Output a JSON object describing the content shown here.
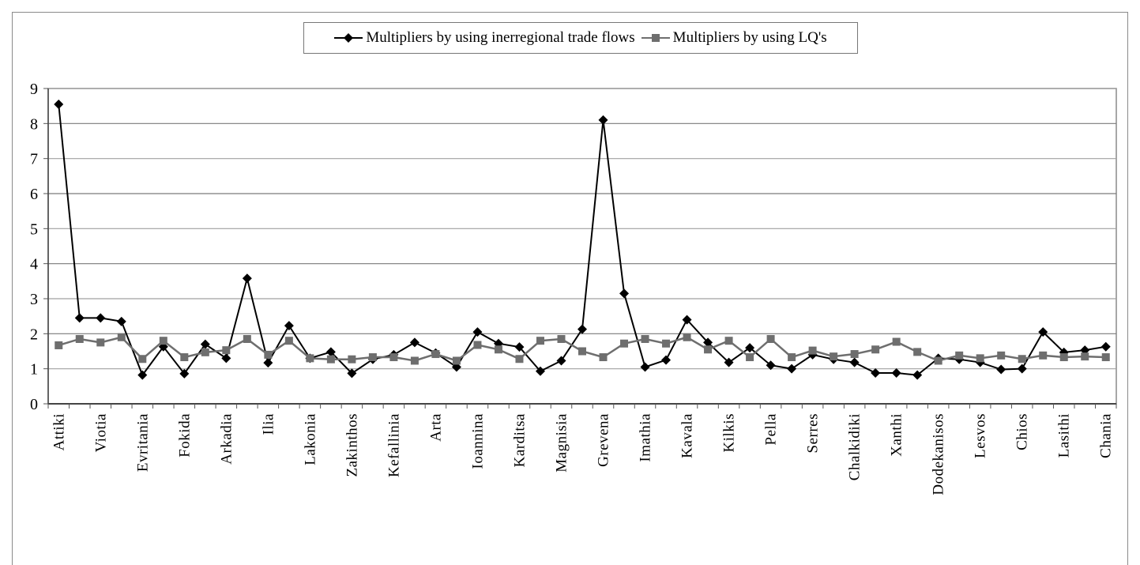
{
  "chart_data": {
    "type": "line",
    "title": "",
    "xlabel": "",
    "ylabel": "",
    "ylim": [
      0,
      9
    ],
    "yticks": [
      0,
      1,
      2,
      3,
      4,
      5,
      6,
      7,
      8,
      9
    ],
    "grid": true,
    "legend_position": "top",
    "categories": [
      "Attiki",
      "",
      "Viotia",
      "",
      "Evritania",
      "",
      "Fokida",
      "",
      "Arkadia",
      "",
      "Ilia",
      "",
      "Lakonia",
      "",
      "Zakinthos",
      "",
      "Kefallinia",
      "",
      "Arta",
      "",
      "Ioannina",
      "",
      "Karditsa",
      "",
      "Magnisia",
      "",
      "Grevena",
      "",
      "Imathia",
      "",
      "Kavala",
      "",
      "Kilkis",
      "",
      "Pella",
      "",
      "Serres",
      "",
      "Chalkidiki",
      "",
      "Xanthi",
      "",
      "Dodekanisos",
      "",
      "Lesvos",
      "",
      "Chios",
      "",
      "Lasithi",
      "",
      "Chania"
    ],
    "visible_tick_labels": [
      "Attiki",
      "Viotia",
      "Evritania",
      "Fokida",
      "Arkadia",
      "Ilia",
      "Lakonia",
      "Zakinthos",
      "Kefallinia",
      "Arta",
      "Ioannina",
      "Karditsa",
      "Magnisia",
      "Grevena",
      "Imathia",
      "Kavala",
      "Kilkis",
      "Pella",
      "Serres",
      "Chalkidiki",
      "Xanthi",
      "Dodekanisos",
      "Lesvos",
      "Chios",
      "Lasithi",
      "Chania"
    ],
    "series": [
      {
        "name": "Multipliers by using inerregional trade flows",
        "color": "#000000",
        "marker": "diamond",
        "values": [
          8.55,
          2.45,
          2.45,
          2.35,
          0.82,
          1.63,
          0.86,
          1.7,
          1.3,
          3.58,
          1.17,
          2.23,
          1.3,
          1.48,
          0.87,
          1.27,
          1.4,
          1.75,
          1.45,
          1.05,
          2.05,
          1.72,
          1.62,
          0.93,
          1.23,
          2.13,
          8.1,
          3.15,
          1.05,
          1.25,
          2.4,
          1.75,
          1.18,
          1.6,
          1.1,
          1.0,
          1.4,
          1.27,
          1.18,
          0.88,
          0.88,
          0.82,
          1.3,
          1.27,
          1.18,
          0.98,
          1.0,
          2.05,
          1.47,
          1.53,
          1.63
        ]
      },
      {
        "name": "Multipliers by using LQ's",
        "color": "#6e6e6e",
        "marker": "square",
        "values": [
          1.67,
          1.85,
          1.75,
          1.9,
          1.28,
          1.8,
          1.33,
          1.47,
          1.53,
          1.85,
          1.4,
          1.8,
          1.3,
          1.27,
          1.27,
          1.33,
          1.33,
          1.23,
          1.42,
          1.23,
          1.68,
          1.55,
          1.28,
          1.8,
          1.85,
          1.5,
          1.33,
          1.72,
          1.85,
          1.72,
          1.9,
          1.55,
          1.8,
          1.33,
          1.85,
          1.33,
          1.52,
          1.35,
          1.42,
          1.55,
          1.77,
          1.48,
          1.23,
          1.38,
          1.3,
          1.38,
          1.28,
          1.38,
          1.33,
          1.35,
          1.33
        ]
      }
    ]
  },
  "legend": {
    "series1_label": "Multipliers by using inerregional trade flows",
    "series2_label": "Multipliers by using LQ's"
  }
}
